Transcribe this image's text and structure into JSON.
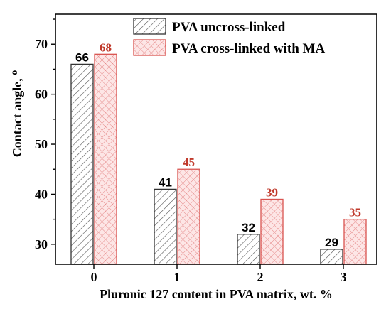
{
  "chart_data": {
    "type": "bar",
    "categories": [
      "0",
      "1",
      "2",
      "3"
    ],
    "series": [
      {
        "name": "PVA uncross-linked",
        "values": [
          66,
          41,
          32,
          29
        ],
        "value_labels": [
          "66",
          "41",
          "32",
          "29"
        ]
      },
      {
        "name": "PVA cross-linked with MA",
        "values": [
          68,
          45,
          39,
          35
        ],
        "value_labels": [
          "68",
          "45",
          "39",
          "35"
        ]
      }
    ],
    "xlabel": "Pluronic 127 content in PVA matrix, wt. %",
    "ylabel": "Contact angle, ",
    "ylabel_unit": "o",
    "ylim": [
      26,
      76
    ],
    "yticks": [
      "30",
      "40",
      "50",
      "60",
      "70"
    ],
    "legend_position": "top-right",
    "grid": false,
    "colors": {
      "series_a_stroke": "#333333",
      "series_a_fill": "#ffffff",
      "series_b_stroke": "#d9534f",
      "series_b_fill": "#fbe0e0",
      "series_b_label": "#c0392b"
    }
  }
}
